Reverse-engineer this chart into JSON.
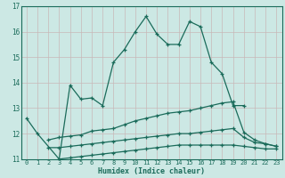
{
  "xlabel": "Humidex (Indice chaleur)",
  "background_color": "#cce8e4",
  "grid_color": "#dde8e6",
  "line_color": "#1a6b5a",
  "xlim": [
    -0.5,
    23.5
  ],
  "ylim": [
    11.0,
    17.0
  ],
  "xticks": [
    0,
    1,
    2,
    3,
    4,
    5,
    6,
    7,
    8,
    9,
    10,
    11,
    12,
    13,
    14,
    15,
    16,
    17,
    18,
    19,
    20,
    21,
    22,
    23
  ],
  "yticks": [
    11,
    12,
    13,
    14,
    15,
    16,
    17
  ],
  "x_values": [
    0,
    1,
    2,
    3,
    4,
    5,
    6,
    7,
    8,
    9,
    10,
    11,
    12,
    13,
    14,
    15,
    16,
    17,
    18,
    19,
    20,
    21,
    22,
    23
  ],
  "line1_y": [
    12.6,
    12.0,
    null,
    11.0,
    13.9,
    13.35,
    13.4,
    13.1,
    14.8,
    15.3,
    16.0,
    16.6,
    15.9,
    15.5,
    15.5,
    16.4,
    16.2,
    14.8,
    14.35,
    13.1,
    13.1,
    null,
    null,
    null
  ],
  "line2_y": [
    null,
    null,
    11.75,
    11.85,
    11.9,
    11.95,
    12.1,
    12.15,
    12.2,
    12.35,
    12.5,
    12.6,
    12.7,
    12.8,
    12.85,
    12.9,
    13.0,
    13.1,
    13.2,
    13.25,
    12.05,
    11.75,
    11.6,
    11.5
  ],
  "line3_y": [
    null,
    null,
    11.45,
    11.45,
    11.5,
    11.55,
    11.6,
    11.65,
    11.7,
    11.75,
    11.8,
    11.85,
    11.9,
    11.95,
    12.0,
    12.0,
    12.05,
    12.1,
    12.15,
    12.2,
    11.85,
    11.65,
    11.6,
    11.5
  ],
  "line4_y": [
    null,
    null,
    null,
    11.0,
    11.05,
    11.1,
    11.15,
    11.2,
    11.25,
    11.3,
    11.35,
    11.4,
    11.45,
    11.5,
    11.55,
    11.55,
    11.55,
    11.55,
    11.55,
    11.55,
    11.5,
    11.45,
    11.4,
    11.4
  ]
}
